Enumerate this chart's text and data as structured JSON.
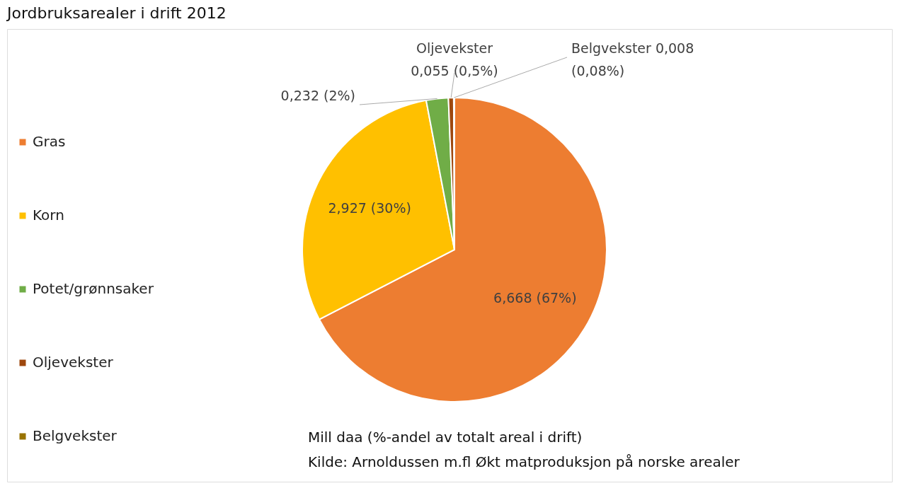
{
  "chart_data": {
    "type": "pie",
    "title": "Jordbruksarealer i drift 2012",
    "categories": [
      "Gras",
      "Korn",
      "Potet/grønnsaker",
      "Oljevekster",
      "Belgvekster"
    ],
    "values": [
      6.668,
      2.927,
      0.232,
      0.055,
      0.008
    ],
    "colors": [
      "#ed7d31",
      "#ffc000",
      "#70ad47",
      "#9e480e",
      "#997300"
    ],
    "value_labels": [
      "6,668 (67%)",
      "2,927 (30%)",
      "0,232 (2%)",
      "Oljevekster\n0,055 (0,5%)",
      "Belgvekster 0,008\n(0,08%)"
    ],
    "legend": "left",
    "annotations": [
      "Mill daa (%-andel av totalt areal i drift)",
      "Kilde: Arnoldussen m.fl Økt matproduksjon på norske arealer"
    ]
  }
}
